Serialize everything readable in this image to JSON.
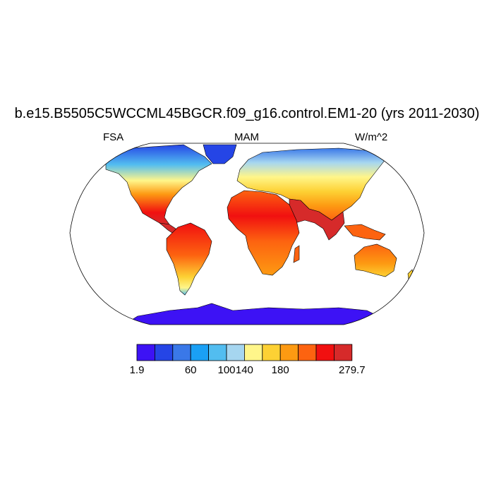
{
  "title": "b.e15.B5505C5WCCML45BGCR.f09_g16.control.EM1-20 (yrs 2011-2030)",
  "left_label": "FSA",
  "center_label": "MAM",
  "right_label": "W/m^2",
  "colorbar": {
    "colors": [
      "#3d12f5",
      "#2545e6",
      "#3a78e8",
      "#1aa0f5",
      "#52bdf0",
      "#a6d6f0",
      "#fff68a",
      "#fdd134",
      "#fd9a12",
      "#fd6310",
      "#f11010",
      "#d62a2a"
    ],
    "tick_labels": [
      "1.9",
      "60",
      "100",
      "140",
      "180",
      "279.7"
    ],
    "range": [
      1.9,
      279.7
    ]
  },
  "palette": {
    "ocean": "#ffffff",
    "antarctica": "#3d12f5",
    "coast": "#000000"
  }
}
